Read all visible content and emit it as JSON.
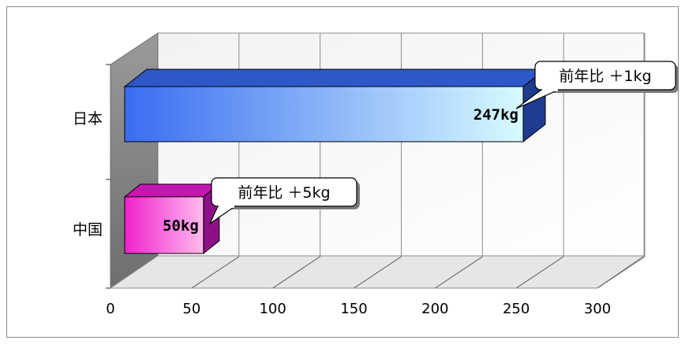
{
  "chart_data": {
    "type": "bar",
    "orientation": "horizontal",
    "style": "3d",
    "title": "",
    "xlabel": "",
    "ylabel": "",
    "categories": [
      "中国",
      "日本"
    ],
    "values": [
      50,
      247
    ],
    "data_labels": [
      "50kg",
      "247kg"
    ],
    "callouts": [
      "前年比 ＋5kg",
      "前年比 ＋1kg"
    ],
    "xlim": [
      0,
      300
    ],
    "xticks": [
      0,
      50,
      100,
      150,
      200,
      250,
      300
    ],
    "grid": true,
    "legend": "none"
  },
  "colors": {
    "china_bar_start": "#ee22cc",
    "china_bar_end": "#ffbbee",
    "japan_bar_start": "#3a6cf0",
    "japan_bar_end": "#d8fbff"
  }
}
